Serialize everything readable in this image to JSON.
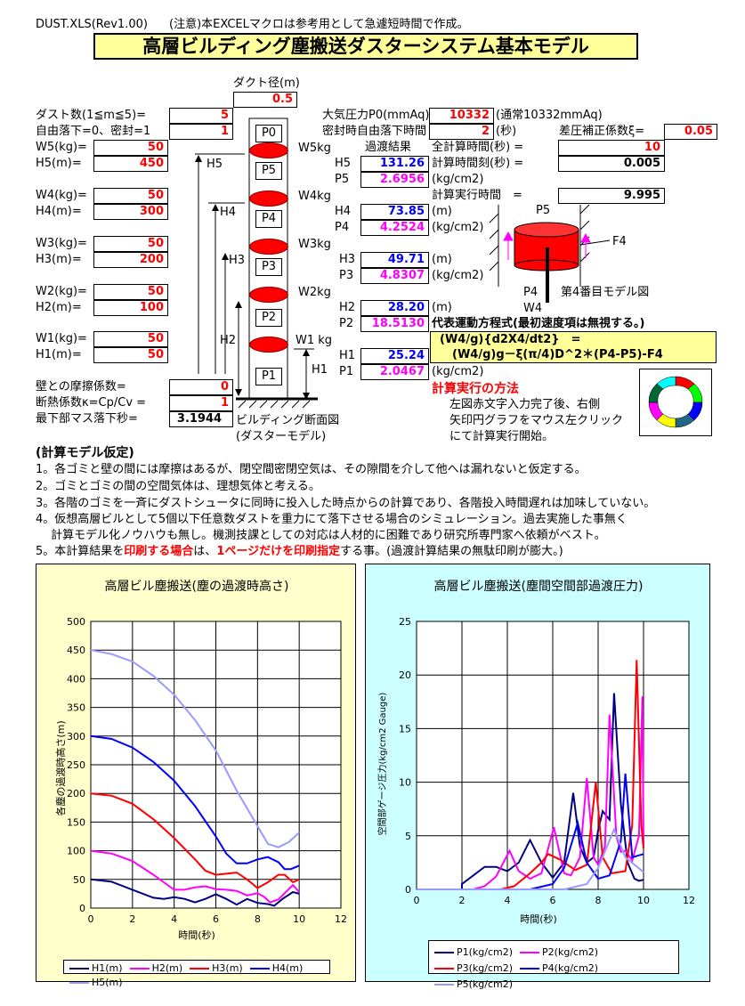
{
  "header": {
    "file": "DUST.XLS(Rev1.00)",
    "note": "(注意)本EXCELマクロは参考用として急遽短時間で作成。",
    "title": "高層ビルディング塵搬送ダスターシステム基本モデル"
  },
  "inputs": {
    "duct_label": "ダクト径(m)",
    "duct": "0.5",
    "dust_label": "ダスト数(1≦m≦5)=",
    "dust": "5",
    "mode_label": "自由落下=0、密封=1",
    "mode": "1",
    "floors": [
      {
        "w_label": "W5(kg)=",
        "w": "50",
        "h_label": "H5(m)=",
        "h": "450"
      },
      {
        "w_label": "W4(kg)=",
        "w": "50",
        "h_label": "H4(m)=",
        "h": "300"
      },
      {
        "w_label": "W3(kg)=",
        "w": "50",
        "h_label": "H3(m)=",
        "h": "200"
      },
      {
        "w_label": "W2(kg)=",
        "w": "50",
        "h_label": "H2(m)=",
        "h": "100"
      },
      {
        "w_label": "W1(kg)=",
        "w": "50",
        "h_label": "H1(m)=",
        "h": "50"
      }
    ],
    "friction_label": "壁との摩擦係数=",
    "friction": "0",
    "kappa_label": "断熱係数κ=Cp/Cv =",
    "kappa": "1",
    "lowest_label": "最下部マス落下秒=",
    "lowest": "3.1944"
  },
  "pressure": {
    "p0_label": "大気圧力P0(mmAq)=",
    "p0": "10332",
    "p0_note": "(通常10332mmAq)",
    "seal_label": "密封時自由落下時間",
    "seal": "2",
    "seal_unit": "(秒)",
    "xi_label": "差圧補正係数ξ=",
    "xi": "0.05"
  },
  "results": {
    "header": "過渡結果",
    "items": [
      {
        "h_label": "H5",
        "h": "131.26",
        "p_label": "P5",
        "p": "2.6956"
      },
      {
        "h_label": "H4",
        "h": "73.85",
        "p_label": "P4",
        "p": "4.2524"
      },
      {
        "h_label": "H3",
        "h": "49.71",
        "p_label": "P3",
        "p": "4.8307"
      },
      {
        "h_label": "H2",
        "h": "28.20",
        "p_label": "P2",
        "p": "18.5130"
      },
      {
        "h_label": "H1",
        "h": "25.24",
        "p_label": "P1",
        "p": "2.0467"
      }
    ],
    "total_label": "全計算時間(秒) =",
    "total": "10",
    "step_label": "計算時間刻(秒) =",
    "step": "0.005",
    "run_label": "計算実行時間　=",
    "run": "9.995",
    "unit_m": "(m)",
    "unit_p": "(kg/cm2)"
  },
  "diagram": {
    "boxes": [
      "P0",
      "P5",
      "P4",
      "P3",
      "P2",
      "P1"
    ],
    "weights": [
      "W5kg",
      "W4kg",
      "W3kg",
      "W2kg",
      "W1 kg"
    ],
    "heights": [
      "H5",
      "H4",
      "H3",
      "H2",
      "H1"
    ],
    "caption1": "ビルディング断面図",
    "caption2": "(ダスターモデル)"
  },
  "model": {
    "p5": "P5",
    "f4": "F4",
    "p4": "P4",
    "caption": "第4番目モデル図",
    "w4": "W4"
  },
  "equation": {
    "title": "代表運動方程式(最初速度項は無視する。)",
    "line1": "(W4/g){d2X4/dt2}　=",
    "line2": "(W4/g)g－ξ(π/4)D^2＊(P4-P5)-F4"
  },
  "howto": {
    "title": "計算実行の方法",
    "lines": [
      "左図赤文字入力完了後、右側",
      "矢印円グラフをマウス左クリック",
      "にて計算実行開始。"
    ]
  },
  "assumptions": {
    "title": "(計算モデル仮定)",
    "items": [
      "1。各ゴミと壁の間には摩擦はあるが、閉空間密閉空気は、その隙間を介して他へは漏れないと仮定する。",
      "2。ゴミとゴミの間の空間気体は、理想気体と考える。",
      "3。各階のゴミを一斉にダストシュータに同時に投入した時点からの計算であり、各階投入時間遅れは加味していない。",
      "4。仮想高層ビルとして5個以下任意数ダストを重力にて落下させる場合のシミュレーション。過去実施した事無く",
      "　 計算モデル化ノウハウも無し。機測技課としての対応は人材的に困難であり研究所専門家へ依頼がベスト。"
    ],
    "item5_pre": "5。本計算結果を",
    "item5_red1": "印刷する場合",
    "item5_mid": "は、",
    "item5_red2": "1ページだけを印刷指定",
    "item5_post": "する事。(過渡計算結果の無駄印刷が膨大。)"
  },
  "chart_data": [
    {
      "type": "line",
      "title": "高層ビル塵搬送(塵の過渡時高さ)",
      "xlabel": "時間(秒)",
      "ylabel": "各塵の過渡時高さ(m)",
      "xlim": [
        0,
        12
      ],
      "ylim": [
        0,
        500
      ],
      "xticks": [
        "0",
        "2",
        "4",
        "6",
        "8",
        "10",
        "12"
      ],
      "yticks": [
        "0",
        "50",
        "100",
        "150",
        "200",
        "250",
        "300",
        "350",
        "400",
        "450",
        "500"
      ],
      "grid": true,
      "legend": "bottom",
      "series": [
        {
          "name": "H1(m)",
          "color": "#000080",
          "x": [
            0,
            1,
            2,
            3,
            3.5,
            4,
            4.5,
            5,
            5.5,
            6,
            6.5,
            7,
            7.5,
            8,
            8.5,
            8.8,
            9.2,
            9.7,
            10
          ],
          "y": [
            50,
            46,
            32,
            18,
            16,
            19,
            16,
            10,
            16,
            24,
            16,
            6,
            16,
            9,
            7,
            4,
            16,
            28,
            25
          ]
        },
        {
          "name": "H2(m)",
          "color": "#ff00ff",
          "x": [
            0,
            1,
            2,
            3,
            3.5,
            4,
            4.5,
            5,
            5.5,
            6,
            6.5,
            7,
            7.5,
            8,
            8.3,
            8.6,
            9,
            9.5,
            9.7,
            10
          ],
          "y": [
            100,
            95,
            82,
            58,
            45,
            32,
            32,
            36,
            38,
            33,
            32,
            30,
            22,
            26,
            20,
            10,
            15,
            33,
            40,
            28
          ]
        },
        {
          "name": "H3(m)",
          "color": "#ff0000",
          "x": [
            0,
            1,
            2,
            3,
            4,
            5,
            5.5,
            6,
            6.5,
            7,
            7.5,
            8,
            8.5,
            9,
            9.3,
            9.7,
            10
          ],
          "y": [
            200,
            196,
            182,
            155,
            122,
            85,
            65,
            58,
            60,
            62,
            50,
            35,
            45,
            58,
            58,
            45,
            50
          ]
        },
        {
          "name": "H4(m)",
          "color": "#0000ff",
          "x": [
            0,
            1,
            2,
            3,
            4,
            5,
            6,
            6.5,
            7,
            7.5,
            8,
            8.5,
            9,
            9.3,
            9.6,
            10
          ],
          "y": [
            300,
            295,
            280,
            255,
            222,
            178,
            125,
            95,
            78,
            78,
            85,
            89,
            80,
            68,
            68,
            74
          ]
        },
        {
          "name": "H5(m)",
          "color": "#9999ff",
          "x": [
            0,
            1,
            2,
            3,
            4,
            5,
            6,
            7,
            8,
            8.5,
            9,
            9.5,
            10
          ],
          "y": [
            450,
            443,
            430,
            405,
            372,
            328,
            275,
            205,
            143,
            112,
            106,
            115,
            132
          ]
        }
      ]
    },
    {
      "type": "line",
      "title": "高層ビル塵搬送(塵間空間部過渡圧力)",
      "xlabel": "時間(秒)",
      "ylabel": "空間部ゲージ圧力(kg/cm2 Gauge)",
      "xlim": [
        0,
        12
      ],
      "ylim": [
        0,
        25
      ],
      "xticks": [
        "0",
        "2",
        "4",
        "6",
        "8",
        "10",
        "12"
      ],
      "yticks": [
        "0",
        "5",
        "10",
        "15",
        "20",
        "25"
      ],
      "grid": true,
      "legend": "bottom",
      "series": [
        {
          "name": "P1(kg/cm2)",
          "color": "#000080",
          "x": [
            0,
            2,
            2,
            2.5,
            3,
            3.5,
            4,
            4.5,
            5,
            5.5,
            6,
            6.5,
            6.9,
            7.2,
            7.5,
            7.8,
            8,
            8.2,
            8.5,
            8.7,
            9,
            9.3,
            9.6,
            9.8,
            10
          ],
          "y": [
            0,
            0,
            0.5,
            1.3,
            2.1,
            2.1,
            1.7,
            2.5,
            4.6,
            2.5,
            1.1,
            2.5,
            9,
            4,
            2.5,
            3,
            5.5,
            7.3,
            6.5,
            18.3,
            8,
            2.5,
            1,
            0.8,
            0.9
          ]
        },
        {
          "name": "P2(kg/cm2)",
          "color": "#ff00ff",
          "x": [
            0,
            2.5,
            3,
            3.5,
            4.1,
            4.5,
            5,
            5.5,
            6.05,
            6.5,
            6.8,
            7.2,
            7.5,
            7.8,
            8,
            8.3,
            8.5,
            8.8,
            9,
            9.2,
            9.5,
            9.8,
            9.95,
            10
          ],
          "y": [
            0,
            0,
            0.3,
            1.2,
            3.6,
            1.7,
            1,
            1.5,
            5.8,
            1.5,
            1.3,
            3,
            10.4,
            3,
            2.3,
            4,
            16.3,
            5,
            3.5,
            3.6,
            2.7,
            5,
            18,
            4
          ]
        },
        {
          "name": "P3(kg/cm2)",
          "color": "#ff0000",
          "x": [
            0,
            3.7,
            4.3,
            5,
            5.5,
            5.8,
            6.3,
            7,
            7.5,
            7.9,
            8.2,
            8.6,
            9.2,
            9.5,
            9.7,
            9.9,
            10
          ],
          "y": [
            0,
            0,
            0.3,
            1.5,
            2.5,
            3.3,
            2.8,
            1.8,
            2.3,
            10,
            3,
            1.5,
            1.7,
            6,
            21.4,
            6,
            3.8
          ]
        },
        {
          "name": "P4(kg/cm2)",
          "color": "#0000ff",
          "x": [
            0,
            5,
            6,
            6.5,
            7.1,
            7.5,
            8,
            8.5,
            9,
            9.2,
            9.5,
            10
          ],
          "y": [
            0,
            0,
            0.5,
            2,
            6.2,
            2.5,
            1,
            1.3,
            4.5,
            10.8,
            3,
            3.3
          ]
        },
        {
          "name": "P5(kg/cm2)",
          "color": "#9999ff",
          "x": [
            0,
            6.5,
            7.5,
            8,
            8.7,
            9.2,
            10
          ],
          "y": [
            0,
            0,
            0.5,
            2,
            5.6,
            3,
            1.6
          ]
        }
      ]
    }
  ]
}
